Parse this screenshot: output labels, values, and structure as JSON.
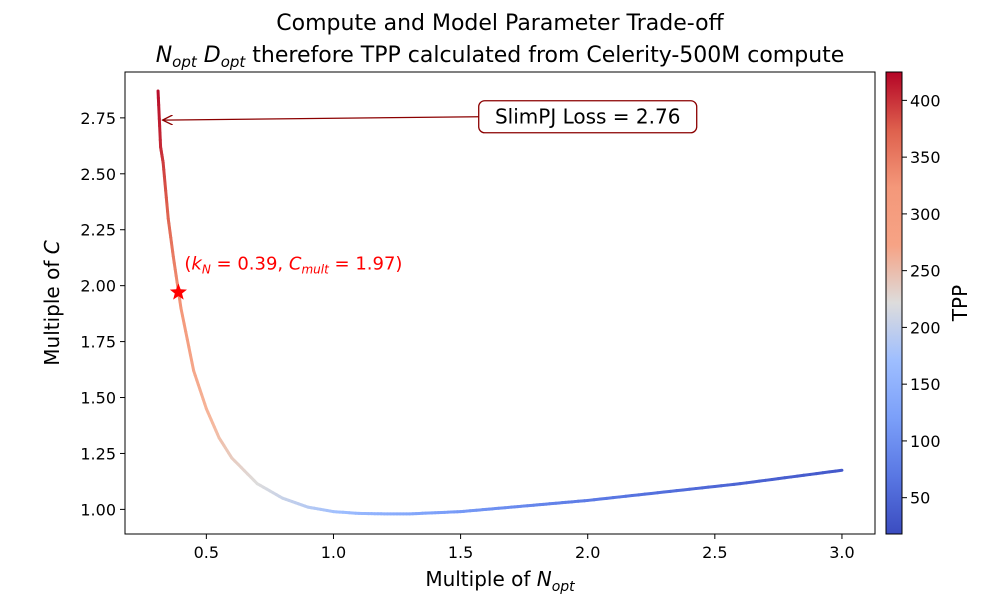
{
  "chart_data": {
    "type": "line",
    "title": {
      "line1": "Compute and Model Parameter Trade-off",
      "line2_N": "N",
      "line2_N_sub": "opt",
      "line2_D": "D",
      "line2_D_sub": "opt",
      "line2_rest": "therefore TPP calculated from Celerity-500M compute"
    },
    "xlabel": {
      "text": "Multiple of ",
      "var": "N",
      "sub": "opt"
    },
    "ylabel": {
      "text": "Multiple of ",
      "var": "C"
    },
    "xlim": [
      0.18,
      3.13
    ],
    "ylim": [
      0.89,
      2.955
    ],
    "xticks": [
      0.5,
      1.0,
      1.5,
      2.0,
      2.5,
      3.0
    ],
    "xtick_labels": [
      "0.5",
      "1.0",
      "1.5",
      "2.0",
      "2.5",
      "3.0"
    ],
    "yticks": [
      1.0,
      1.25,
      1.5,
      1.75,
      2.0,
      2.25,
      2.5,
      2.75
    ],
    "ytick_labels": [
      "1.00",
      "1.25",
      "1.50",
      "1.75",
      "2.00",
      "2.25",
      "2.50",
      "2.75"
    ],
    "series": [
      {
        "x": [
          0.31,
          0.32,
          0.33,
          0.35,
          0.37,
          0.4,
          0.45,
          0.5,
          0.55,
          0.6,
          0.7,
          0.8,
          0.9,
          1.0,
          1.1,
          1.2,
          1.3,
          1.4,
          1.5,
          1.6,
          1.7,
          1.8,
          1.9,
          2.0,
          2.2,
          2.4,
          2.6,
          2.8,
          3.0
        ],
        "y": [
          2.87,
          2.62,
          2.55,
          2.3,
          2.13,
          1.9,
          1.62,
          1.45,
          1.32,
          1.23,
          1.115,
          1.05,
          1.01,
          0.99,
          0.982,
          0.98,
          0.98,
          0.985,
          0.99,
          1.0,
          1.01,
          1.02,
          1.03,
          1.04,
          1.065,
          1.09,
          1.115,
          1.145,
          1.175
        ],
        "tpp": [
          420,
          405,
          395,
          370,
          350,
          325,
          300,
          280,
          262,
          245,
          222,
          205,
          190,
          175,
          160,
          147,
          135,
          124,
          113,
          104,
          96,
          88,
          81,
          75,
          64,
          55,
          47,
          40,
          33
        ]
      }
    ],
    "colorbar": {
      "label": "TPP",
      "range": [
        18,
        425
      ],
      "ticks": [
        50,
        100,
        150,
        200,
        250,
        300,
        350,
        400
      ],
      "tick_labels": [
        "50",
        "100",
        "150",
        "200",
        "250",
        "300",
        "350",
        "400"
      ],
      "colormap": "coolwarm"
    },
    "marker": {
      "x": 0.39,
      "y": 1.97,
      "color": "#ff0000",
      "label": {
        "open": "(",
        "kN_var": "k",
        "kN_sub": "N",
        "kN_val": " = 0.39, ",
        "C_var": "C",
        "C_sub": "mult",
        "C_val": " = 1.97)"
      }
    },
    "annotation": {
      "text": "SlimPJ Loss = 2.76",
      "arrow_target": {
        "x": 0.32,
        "y": 2.74
      },
      "text_anchor": {
        "x": 2.0,
        "y": 2.755
      },
      "color": "#8b0000"
    },
    "grid": false,
    "legend": "none"
  }
}
